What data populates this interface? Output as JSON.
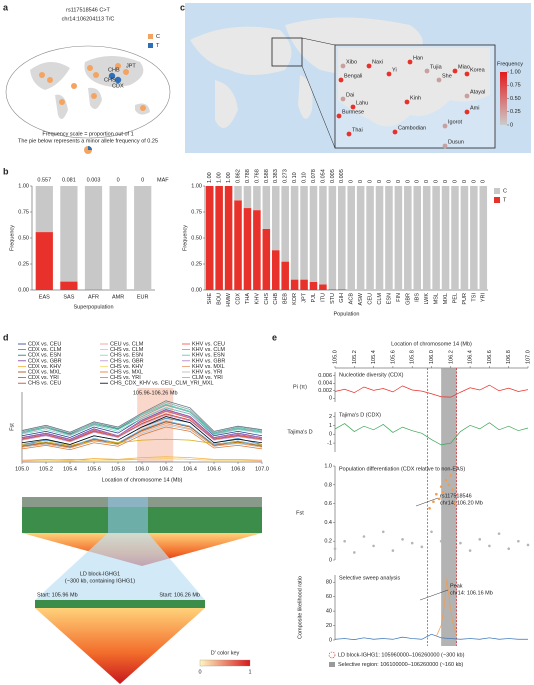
{
  "panel_labels": [
    "a",
    "b",
    "c",
    "d",
    "e"
  ],
  "panel_a": {
    "title": "rs117518546 C>T",
    "subtitle": "chr14:106204113 T/C",
    "legend": [
      {
        "name": "C",
        "color": "#f4a460"
      },
      {
        "name": "T",
        "color": "#2f6fb5"
      }
    ],
    "map_labels": [
      "JPT",
      "CHB",
      "CHS",
      "CDX"
    ],
    "note_1": "Frequency scale = proportion out of 1",
    "note_2": "The pie below represents a minor allele frequency of 0.25"
  },
  "panel_c": {
    "populations": [
      "Xibo",
      "Naxi",
      "Han",
      "Tujia",
      "Bengali",
      "Yi",
      "She",
      "Miao",
      "Korea",
      "Dai",
      "Lahu",
      "Kinh",
      "Atayal",
      "Burmese",
      "Ami",
      "Igorot",
      "Thai",
      "Cambodian",
      "Dusun"
    ],
    "colorbar": {
      "title": "Frequency",
      "colors": [
        "#cccccc",
        "#e41a1c"
      ],
      "lim": [
        0,
        1
      ],
      "ticks": [
        {
          "value": 1,
          "label": "1.00"
        },
        0.75,
        {
          "value": 0.5,
          "label": "0.50"
        },
        0.25,
        0
      ]
    }
  },
  "chart_data": [
    {
      "type": "stacked-bar",
      "xlabel": "Superpopulation",
      "ylabel": "Frequency",
      "value_label_title": "MAF",
      "categories": [
        "EAS",
        "SAS",
        "AFR",
        "AMR",
        "EUR"
      ],
      "series": [
        {
          "name": "T",
          "color": "#e8312a",
          "values": [
            0.557,
            0.081,
            0.003,
            0,
            0
          ]
        },
        {
          "name": "C",
          "color": "#c8c8c8",
          "values": [
            0.443,
            0.919,
            0.997,
            1,
            1
          ]
        }
      ],
      "value_labels": [
        "0.557",
        "0.081",
        "0.003",
        "0",
        "0"
      ],
      "ylim": [
        0,
        1
      ],
      "yticks": [
        {
          "value": 0,
          "label": "0.00"
        },
        0.25,
        {
          "value": 0.5,
          "label": "0.50"
        },
        0.75,
        {
          "value": 1,
          "label": "1.00"
        }
      ]
    },
    {
      "type": "stacked-bar",
      "xlabel": "Population",
      "ylabel": "Frequency",
      "legend": "right",
      "categories": [
        "SHE",
        "BOU",
        "HMW",
        "CDX",
        "THA",
        "KHV",
        "CHS",
        "CHB",
        "BEB",
        "KOR",
        "JPT",
        "PJL",
        "ITU",
        "STU",
        "GIH",
        "ACB",
        "ASW",
        "CEU",
        "CLM",
        "ESN",
        "FIN",
        "GBR",
        "IBS",
        "LWK",
        "MSL",
        "MXL",
        "PEL",
        "PUR",
        "TSI",
        "YRI"
      ],
      "series": [
        {
          "name": "T",
          "color": "#e8312a",
          "values": [
            1,
            1,
            1,
            0.862,
            0.788,
            0.768,
            0.588,
            0.383,
            0.273,
            0.1,
            0.1,
            0.078,
            0.054,
            0.005,
            0.005,
            0,
            0,
            0,
            0,
            0,
            0,
            0,
            0,
            0,
            0,
            0,
            0,
            0,
            0,
            0
          ]
        },
        {
          "name": "C",
          "color": "#c8c8c8",
          "values": [
            0,
            0,
            0,
            0.138,
            0.212,
            0.232,
            0.412,
            0.617,
            0.727,
            0.9,
            0.9,
            0.922,
            0.946,
            0.995,
            0.995,
            1,
            1,
            1,
            1,
            1,
            1,
            1,
            1,
            1,
            1,
            1,
            1,
            1,
            1,
            1
          ]
        }
      ],
      "value_labels": [
        "1.00",
        "1.00",
        "1.00",
        "0.862",
        "0.788",
        "0.768",
        "0.588",
        "0.383",
        "0.273",
        "0.10",
        "0.10",
        "0.078",
        "0.054",
        "0.005",
        "0.005",
        "0",
        "0",
        "0",
        "0",
        "0",
        "0",
        "0",
        "0",
        "0",
        "0",
        "0",
        "0",
        "0",
        "0",
        "0"
      ],
      "ylim": [
        0,
        1
      ],
      "yticks": [
        {
          "value": 0,
          "label": "0.00"
        },
        0.25,
        {
          "value": 0.5,
          "label": "0.50"
        },
        0.75,
        {
          "value": 1,
          "label": "1.00"
        }
      ]
    },
    {
      "type": "line",
      "xlabel": "Location of chromosome 14 (Mb)",
      "ylabel": "Fst",
      "highlight": {
        "range": [
          105.96,
          106.26
        ],
        "label": "105.96-106.26 Mb",
        "color": "#f6c6b4"
      },
      "x": [
        105.0,
        105.2,
        105.4,
        105.6,
        105.8,
        106.0,
        106.2,
        106.4,
        106.6,
        106.8,
        107.0
      ],
      "xlim": [
        105,
        107
      ],
      "xticks": [
        {
          "value": 105,
          "label": "105.0"
        },
        105.2,
        105.4,
        105.6,
        105.8,
        {
          "value": 106,
          "label": "106.0"
        },
        106.2,
        106.4,
        106.6,
        106.8,
        {
          "value": 107,
          "label": "107.0"
        }
      ],
      "ylim": [
        0,
        0.8
      ],
      "series": [
        {
          "name": "CDX vs. CEU",
          "color": "#1f3a93",
          "values": [
            0.3,
            0.35,
            0.28,
            0.4,
            0.33,
            0.5,
            0.62,
            0.55,
            0.3,
            0.35,
            0.3
          ]
        },
        {
          "name": "CDX vs. CLM",
          "color": "#2e86c1",
          "values": [
            0.2,
            0.25,
            0.2,
            0.3,
            0.25,
            0.4,
            0.5,
            0.45,
            0.22,
            0.27,
            0.2
          ]
        },
        {
          "name": "CDX vs. ESN",
          "color": "#117a65",
          "values": [
            0.35,
            0.4,
            0.32,
            0.45,
            0.38,
            0.55,
            0.68,
            0.6,
            0.33,
            0.4,
            0.36
          ]
        },
        {
          "name": "CDX vs. GBR",
          "color": "#7d3c98",
          "values": [
            0.28,
            0.33,
            0.26,
            0.38,
            0.3,
            0.48,
            0.6,
            0.52,
            0.28,
            0.33,
            0.28
          ]
        },
        {
          "name": "CDX vs. KHV",
          "color": "#f5b041",
          "values": [
            0.02,
            0.03,
            0.02,
            0.04,
            0.03,
            0.05,
            0.06,
            0.05,
            0.03,
            0.03,
            0.02
          ]
        },
        {
          "name": "CDX vs. MXL",
          "color": "#a04000",
          "values": [
            0.18,
            0.22,
            0.17,
            0.26,
            0.21,
            0.36,
            0.46,
            0.4,
            0.19,
            0.23,
            0.18
          ]
        },
        {
          "name": "CDX vs. YRI",
          "color": "#5d6d7e",
          "values": [
            0.36,
            0.42,
            0.34,
            0.46,
            0.4,
            0.56,
            0.7,
            0.62,
            0.35,
            0.41,
            0.37
          ]
        },
        {
          "name": "CHS vs. CEU",
          "color": "#c0392b",
          "values": [
            0.26,
            0.31,
            0.24,
            0.35,
            0.29,
            0.44,
            0.55,
            0.48,
            0.26,
            0.3,
            0.26
          ]
        },
        {
          "name": "CEU vs. CLM",
          "color": "#f1948a",
          "values": [
            0.02,
            0.02,
            0.03,
            0.02,
            0.03,
            0.03,
            0.04,
            0.03,
            0.02,
            0.02,
            0.02
          ]
        },
        {
          "name": "CHS vs. CLM",
          "color": "#a9cce3",
          "values": [
            0.17,
            0.2,
            0.16,
            0.24,
            0.2,
            0.33,
            0.42,
            0.37,
            0.18,
            0.21,
            0.17
          ]
        },
        {
          "name": "CHS vs. ESN",
          "color": "#76d7c4",
          "values": [
            0.32,
            0.37,
            0.3,
            0.42,
            0.35,
            0.5,
            0.62,
            0.55,
            0.31,
            0.37,
            0.33
          ]
        },
        {
          "name": "CHS vs. GBR",
          "color": "#bb8fce",
          "values": [
            0.25,
            0.3,
            0.23,
            0.34,
            0.28,
            0.43,
            0.54,
            0.47,
            0.25,
            0.29,
            0.25
          ]
        },
        {
          "name": "CHS vs. KHV",
          "color": "#f7dc6f",
          "values": [
            0.01,
            0.02,
            0.01,
            0.02,
            0.02,
            0.03,
            0.04,
            0.03,
            0.02,
            0.02,
            0.01
          ]
        },
        {
          "name": "CHS vs. MXL",
          "color": "#dc7633",
          "values": [
            0.15,
            0.19,
            0.14,
            0.22,
            0.18,
            0.31,
            0.4,
            0.35,
            0.16,
            0.19,
            0.15
          ]
        },
        {
          "name": "CHS vs. YRI",
          "color": "#85929e",
          "values": [
            0.33,
            0.39,
            0.31,
            0.43,
            0.37,
            0.52,
            0.65,
            0.57,
            0.32,
            0.38,
            0.34
          ]
        },
        {
          "name": "CHS_CDX_KHV vs. CEU_CLM_YRI_MXL",
          "color": "#000000",
          "values": [
            0.22,
            0.26,
            0.2,
            0.3,
            0.25,
            0.4,
            0.52,
            0.45,
            0.22,
            0.26,
            0.22
          ]
        },
        {
          "name": "KHV vs. CEU",
          "color": "#e74c3c",
          "values": [
            0.27,
            0.32,
            0.25,
            0.36,
            0.3,
            0.46,
            0.58,
            0.5,
            0.27,
            0.31,
            0.27
          ]
        },
        {
          "name": "KHV vs. CLM",
          "color": "#5dade2",
          "values": [
            0.19,
            0.23,
            0.18,
            0.27,
            0.22,
            0.37,
            0.47,
            0.41,
            0.2,
            0.24,
            0.19
          ]
        },
        {
          "name": "KHV vs. ESN",
          "color": "#48c9b0",
          "values": [
            0.34,
            0.4,
            0.33,
            0.44,
            0.37,
            0.54,
            0.66,
            0.58,
            0.33,
            0.39,
            0.35
          ]
        },
        {
          "name": "KHV vs. GBR",
          "color": "#af7ac5",
          "values": [
            0.27,
            0.32,
            0.25,
            0.37,
            0.3,
            0.47,
            0.59,
            0.51,
            0.27,
            0.32,
            0.27
          ]
        },
        {
          "name": "KHV vs. MXL",
          "color": "#e59866",
          "values": [
            0.17,
            0.21,
            0.16,
            0.25,
            0.2,
            0.35,
            0.44,
            0.38,
            0.18,
            0.22,
            0.17
          ]
        },
        {
          "name": "KHV vs. YRI",
          "color": "#aab7b8",
          "values": [
            0.35,
            0.41,
            0.33,
            0.45,
            0.39,
            0.55,
            0.68,
            0.6,
            0.34,
            0.4,
            0.36
          ]
        },
        {
          "name": "CLM vs. YRI",
          "color": "#d4ac0d",
          "values": [
            0.2,
            0.23,
            0.19,
            0.24,
            0.22,
            0.25,
            0.26,
            0.25,
            0.21,
            0.22,
            0.2
          ]
        }
      ]
    },
    {
      "type": "line",
      "ylabel": "Pi (π)",
      "subtitle": "Nucleotide diversity (CDX)",
      "xlim": [
        105,
        107
      ],
      "ylim": [
        -0.001,
        0.007
      ],
      "yticks": [
        0.006,
        0.004,
        0.002,
        0
      ],
      "series": [
        {
          "color": "#e8312a",
          "x": [
            105.0,
            105.1,
            105.2,
            105.3,
            105.4,
            105.5,
            105.6,
            105.7,
            105.8,
            105.9,
            106.0,
            106.1,
            106.2,
            106.3,
            106.4,
            106.5,
            106.6,
            106.7,
            106.8,
            106.9,
            107.0
          ],
          "values": [
            0.0018,
            0.0024,
            0.0015,
            0.003,
            0.0021,
            0.0026,
            0.0017,
            0.0033,
            0.0022,
            0.0019,
            0.0012,
            0.0004,
            0.0003,
            0.0016,
            0.0028,
            0.0022,
            0.0035,
            0.002,
            0.0027,
            0.0018,
            0.0023
          ]
        }
      ]
    },
    {
      "type": "line",
      "ylabel": "Tajima's D",
      "subtitle": "Tajima's D (CDX)",
      "xlim": [
        105,
        107
      ],
      "ylim": [
        -2,
        2.5
      ],
      "yticks": [
        2,
        1,
        0,
        -1
      ],
      "series": [
        {
          "color": "#3aa655",
          "x": [
            105.0,
            105.1,
            105.2,
            105.3,
            105.4,
            105.5,
            105.6,
            105.7,
            105.8,
            105.9,
            106.0,
            106.1,
            106.2,
            106.3,
            106.4,
            106.5,
            106.6,
            106.7,
            106.8,
            106.9,
            107.0
          ],
          "values": [
            0.6,
            1.2,
            0.3,
            0.9,
            0.5,
            1.1,
            0.2,
            0.8,
            0.4,
            0.1,
            -0.6,
            -1.2,
            -1.0,
            0.3,
            1.0,
            0.6,
            1.3,
            0.5,
            0.9,
            0.4,
            0.7
          ]
        }
      ]
    },
    {
      "type": "scatter",
      "ylabel": "Fst",
      "subtitle": "Population differentiation (CDX relative to non-EAS)",
      "annotation": [
        "rs117518546",
        "chr14: 106.20 Mb"
      ],
      "xlim": [
        105,
        107
      ],
      "ylim": [
        0,
        1
      ],
      "yticks": [
        {
          "value": 1,
          "label": "1.0"
        },
        0.8,
        0.6,
        0.4,
        0.2,
        0
      ],
      "series": [
        {
          "color": "#b5b5b5",
          "x": [
            105.0,
            105.1,
            105.2,
            105.3,
            105.4,
            105.5,
            105.6,
            105.7,
            105.8,
            105.9,
            106.0,
            106.1,
            106.2,
            106.3,
            106.4,
            106.5,
            106.6,
            106.7,
            106.8,
            106.9,
            107.0
          ],
          "values": [
            0.12,
            0.2,
            0.08,
            0.25,
            0.15,
            0.3,
            0.1,
            0.22,
            0.18,
            0.14,
            0.3,
            0.2,
            0.25,
            0.18,
            0.1,
            0.22,
            0.15,
            0.28,
            0.12,
            0.2,
            0.16
          ]
        },
        {
          "color": "#f39c4a",
          "x": [
            105.98,
            106.02,
            106.05,
            106.08,
            106.1,
            106.12,
            106.15,
            106.18,
            106.2,
            106.22,
            106.24
          ],
          "values": [
            0.55,
            0.62,
            0.7,
            0.65,
            0.78,
            0.72,
            0.85,
            0.8,
            0.9,
            0.75,
            0.6
          ]
        }
      ]
    },
    {
      "type": "line",
      "ylabel": "Composite likelihood ratio",
      "subtitle": "Selective sweep analysis",
      "annotation": [
        "Peak",
        "chr14: 106.16 Mb"
      ],
      "xlim": [
        105,
        107
      ],
      "ylim": [
        0,
        90
      ],
      "yticks": [
        80,
        60,
        40,
        20,
        0
      ],
      "series": [
        {
          "color": "#2f6fb5",
          "x": [
            105.0,
            105.1,
            105.2,
            105.3,
            105.4,
            105.5,
            105.6,
            105.7,
            105.8,
            105.9,
            106.0,
            106.1,
            106.2,
            106.3,
            106.4,
            106.5,
            106.6,
            106.7,
            106.8,
            106.9,
            107.0
          ],
          "values": [
            1,
            2,
            0.5,
            3,
            1,
            2,
            1,
            4,
            2,
            1,
            8,
            3,
            2,
            1,
            2,
            1,
            3,
            1,
            2,
            1,
            1
          ]
        },
        {
          "color": "#f39c4a",
          "x": [
            106.05,
            106.1,
            106.13,
            106.16,
            106.19,
            106.22,
            106.26
          ],
          "values": [
            5,
            20,
            45,
            85,
            50,
            25,
            6
          ]
        }
      ]
    }
  ],
  "panel_d": {
    "ld_title": "LD block-IGHG1",
    "ld_subtitle": "(~300 kb, containing IGHG1)",
    "start_left": "Start: 105.96 Mb",
    "start_right": "Start: 106.26 Mb",
    "key_title": "D′ color key",
    "key_min": "0",
    "key_max": "1"
  },
  "panel_e": {
    "xlabel": "Location of chromosome 14 (Mb)",
    "xlim": [
      105,
      107
    ],
    "xticks": [
      {
        "value": 105,
        "label": "105.0"
      },
      105.2,
      105.4,
      105.6,
      105.8,
      {
        "value": 106,
        "label": "106.0"
      },
      106.2,
      106.4,
      106.6,
      106.8,
      {
        "value": 107,
        "label": "107.0"
      }
    ],
    "ld_block": [
      105.96,
      106.26
    ],
    "selective_region": [
      106.1,
      106.26
    ],
    "ld_legend": "LD block-IGHG1: 105960000–106260000 (~300 kb)",
    "region_legend": "Selective region: 106100000–106260000 (~160 kb)"
  }
}
